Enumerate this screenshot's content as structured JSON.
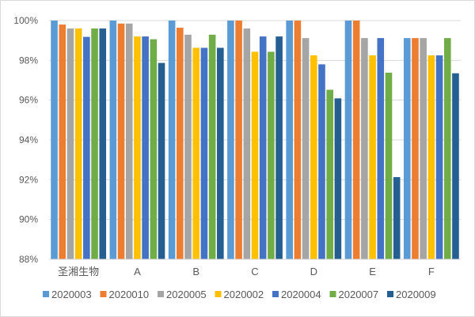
{
  "chart_data": {
    "type": "bar",
    "title": "",
    "xlabel": "",
    "ylabel": "",
    "ylim": [
      88,
      100
    ],
    "yticks": [
      "88%",
      "90%",
      "92%",
      "94%",
      "96%",
      "98%",
      "100%"
    ],
    "grid": true,
    "legend_position": "bottom",
    "categories": [
      "圣湘生物",
      "A",
      "B",
      "C",
      "D",
      "E",
      "F"
    ],
    "series": [
      {
        "name": "2020003",
        "color": "#5b9bd5",
        "values": [
          100,
          100,
          100,
          100,
          100,
          100,
          99.12
        ]
      },
      {
        "name": "2020010",
        "color": "#ed7d31",
        "values": [
          99.8,
          99.85,
          99.64,
          100,
          100,
          100,
          99.12
        ]
      },
      {
        "name": "2020005",
        "color": "#a5a5a5",
        "values": [
          99.6,
          99.85,
          99.29,
          99.6,
          99.12,
          99.12,
          99.12
        ]
      },
      {
        "name": "2020002",
        "color": "#ffc000",
        "values": [
          99.6,
          99.2,
          98.63,
          98.43,
          98.25,
          98.25,
          98.25
        ]
      },
      {
        "name": "2020004",
        "color": "#4472c4",
        "values": [
          99.18,
          99.2,
          98.63,
          99.2,
          97.8,
          99.12,
          98.25
        ]
      },
      {
        "name": "2020007",
        "color": "#70ad47",
        "values": [
          99.6,
          99.06,
          99.29,
          98.43,
          96.52,
          97.38,
          99.12
        ]
      },
      {
        "name": "2020009",
        "color": "#255e91",
        "values": [
          99.6,
          97.87,
          98.63,
          99.2,
          96.09,
          92.13,
          97.35
        ]
      }
    ]
  }
}
